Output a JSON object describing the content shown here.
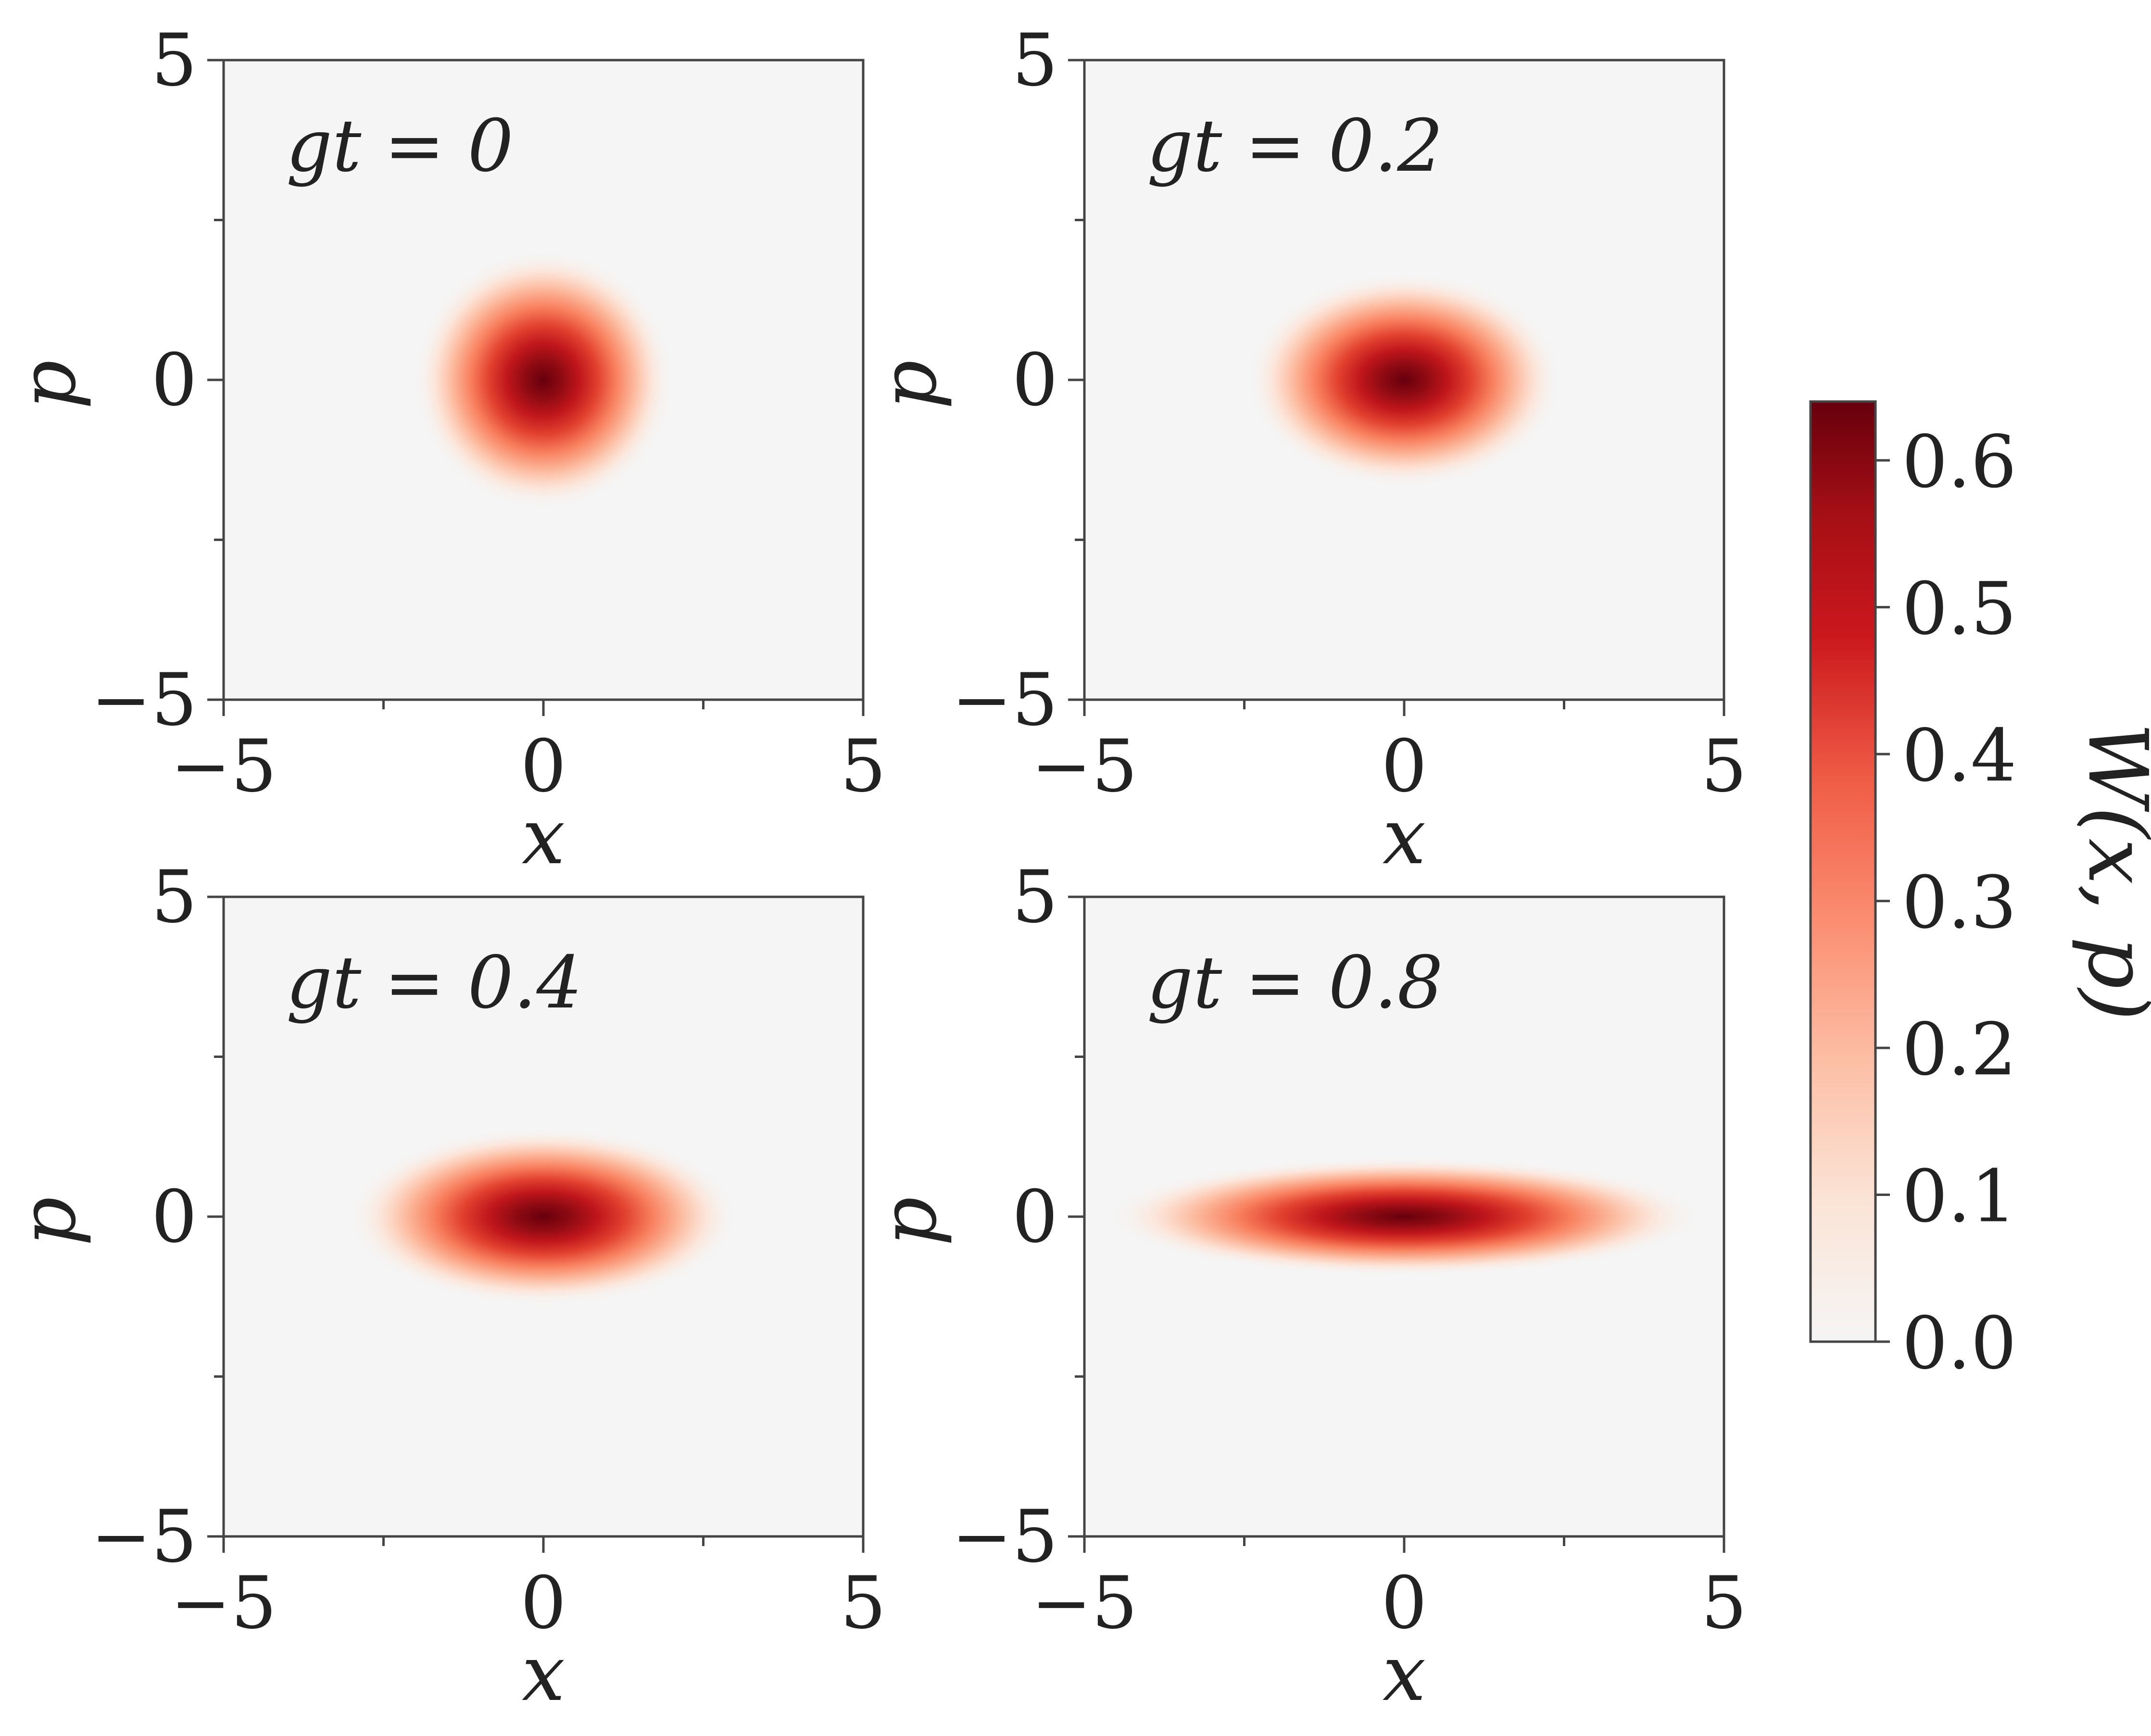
{
  "chart_data": {
    "type": "heatmap",
    "colormap": "Reds",
    "colors": {
      "background": "#f5f5f5",
      "peak": "#67000d",
      "axis": "#444444"
    },
    "xlim": [
      -5,
      5
    ],
    "ylim": [
      -5,
      5
    ],
    "x_ticks": [
      "−5",
      "0",
      "5"
    ],
    "y_ticks": [
      "5",
      "0",
      "−5"
    ],
    "panels": [
      {
        "label": "gt = 0",
        "xlabel": "x",
        "ylabel": "p",
        "center": [
          0,
          0
        ],
        "sigma_x": 0.7,
        "sigma_p": 0.7,
        "peak": 0.64
      },
      {
        "label": "gt = 0.2",
        "xlabel": "x",
        "ylabel": "p",
        "center": [
          0,
          0
        ],
        "sigma_x": 0.85,
        "sigma_p": 0.58,
        "peak": 0.64
      },
      {
        "label": "gt = 0.4",
        "xlabel": "x",
        "ylabel": "p",
        "center": [
          0,
          0
        ],
        "sigma_x": 1.05,
        "sigma_p": 0.48,
        "peak": 0.64
      },
      {
        "label": "gt = 0.8",
        "xlabel": "x",
        "ylabel": "p",
        "center": [
          0,
          0
        ],
        "sigma_x": 1.6,
        "sigma_p": 0.32,
        "peak": 0.64
      }
    ],
    "colorbar": {
      "label": "W(x, p)",
      "range": [
        0.0,
        0.64
      ],
      "ticks": [
        "0.0",
        "0.1",
        "0.2",
        "0.3",
        "0.4",
        "0.5",
        "0.6"
      ]
    }
  }
}
